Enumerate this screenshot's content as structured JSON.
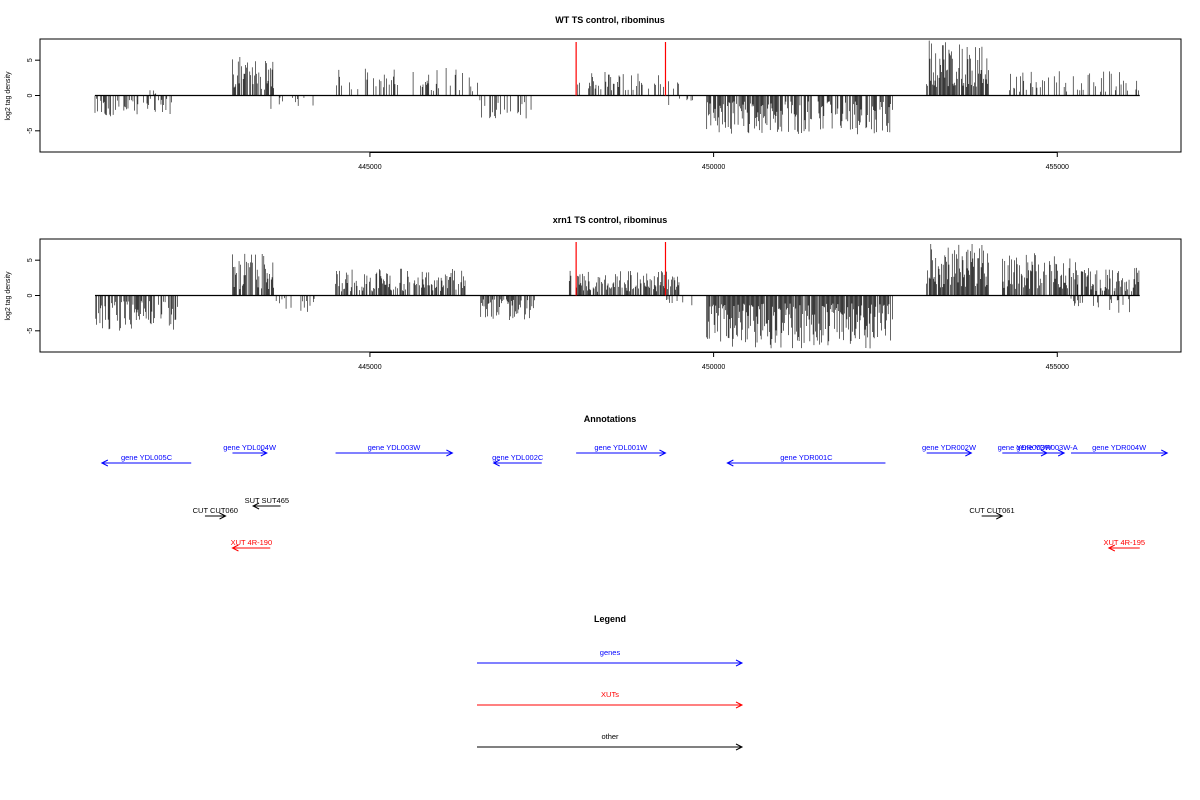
{
  "chart_data": [
    {
      "type": "bar",
      "title": "WT TS control, ribominus",
      "xlabel": "",
      "ylabel": "log2 tag density",
      "xlim": [
        440200,
        456800
      ],
      "ylim": [
        -8,
        8
      ],
      "xticks": [
        445000,
        450000,
        455000
      ],
      "yticks": [
        -5,
        0,
        5
      ],
      "grid": false,
      "marker_lines": {
        "color": "#ff0000",
        "x": [
          448000,
          449300
        ],
        "height": 8
      },
      "segments": [
        {
          "start": 441000,
          "end": 442200,
          "sign": -1,
          "max": 3,
          "density": 0.35
        },
        {
          "start": 441800,
          "end": 441900,
          "sign": 1,
          "max": 1,
          "density": 0.5
        },
        {
          "start": 443000,
          "end": 443600,
          "sign": 1,
          "max": 5.5,
          "density": 0.7
        },
        {
          "start": 443500,
          "end": 444200,
          "sign": -1,
          "max": 2,
          "density": 0.15
        },
        {
          "start": 444500,
          "end": 446600,
          "sign": 1,
          "max": 4,
          "density": 0.25
        },
        {
          "start": 446600,
          "end": 447400,
          "sign": -1,
          "max": 3.5,
          "density": 0.35
        },
        {
          "start": 448000,
          "end": 449500,
          "sign": 1,
          "max": 3.5,
          "density": 0.3
        },
        {
          "start": 449300,
          "end": 449700,
          "sign": -1,
          "max": 1.5,
          "density": 0.15
        },
        {
          "start": 449900,
          "end": 452600,
          "sign": -1,
          "max": 5.5,
          "density": 0.75
        },
        {
          "start": 453100,
          "end": 454000,
          "sign": 1,
          "max": 8,
          "density": 0.9
        },
        {
          "start": 454200,
          "end": 456200,
          "sign": 1,
          "max": 3.5,
          "density": 0.3
        }
      ]
    },
    {
      "type": "bar",
      "title": "xrn1 TS control, ribominus",
      "xlabel": "",
      "ylabel": "log2 tag density",
      "xlim": [
        440200,
        456800
      ],
      "ylim": [
        -8,
        8
      ],
      "xticks": [
        445000,
        450000,
        455000
      ],
      "yticks": [
        -5,
        0,
        5
      ],
      "grid": false,
      "marker_lines": {
        "color": "#ff0000",
        "x": [
          448000,
          449300
        ],
        "height": 8
      },
      "segments": [
        {
          "start": 441000,
          "end": 442200,
          "sign": -1,
          "max": 5,
          "density": 0.6
        },
        {
          "start": 443000,
          "end": 443600,
          "sign": 1,
          "max": 6,
          "density": 0.75
        },
        {
          "start": 443600,
          "end": 444200,
          "sign": -1,
          "max": 2.5,
          "density": 0.25
        },
        {
          "start": 444500,
          "end": 446400,
          "sign": 1,
          "max": 3.8,
          "density": 0.7
        },
        {
          "start": 446600,
          "end": 447400,
          "sign": -1,
          "max": 3.5,
          "density": 0.7
        },
        {
          "start": 447900,
          "end": 449500,
          "sign": 1,
          "max": 3.5,
          "density": 0.75
        },
        {
          "start": 449300,
          "end": 449700,
          "sign": -1,
          "max": 1.5,
          "density": 0.3
        },
        {
          "start": 449900,
          "end": 452600,
          "sign": -1,
          "max": 7.5,
          "density": 0.95
        },
        {
          "start": 453100,
          "end": 454000,
          "sign": 1,
          "max": 7.5,
          "density": 0.95
        },
        {
          "start": 454200,
          "end": 455300,
          "sign": 1,
          "max": 6,
          "density": 0.8
        },
        {
          "start": 455300,
          "end": 456200,
          "sign": 1,
          "max": 4,
          "density": 0.7
        },
        {
          "start": 455200,
          "end": 456200,
          "sign": -1,
          "max": 2.5,
          "density": 0.3
        }
      ]
    }
  ],
  "annotations": {
    "title": "Annotations",
    "features": [
      {
        "label": "gene YDL005C",
        "type": "gene",
        "strand": "-",
        "start": 441100,
        "end": 442400,
        "row": 1
      },
      {
        "label": "gene YDL004W",
        "type": "gene",
        "strand": "+",
        "start": 443000,
        "end": 443500,
        "row": 0
      },
      {
        "label": "gene YDL003W",
        "type": "gene",
        "strand": "+",
        "start": 444500,
        "end": 446200,
        "row": 0
      },
      {
        "label": "gene YDL002C",
        "type": "gene",
        "strand": "-",
        "start": 446800,
        "end": 447500,
        "row": 1
      },
      {
        "label": "gene YDL001W",
        "type": "gene",
        "strand": "+",
        "start": 448000,
        "end": 449300,
        "row": 0
      },
      {
        "label": "gene YDR001C",
        "type": "gene",
        "strand": "-",
        "start": 450200,
        "end": 452500,
        "row": 1
      },
      {
        "label": "gene YDR002W",
        "type": "gene",
        "strand": "+",
        "start": 453100,
        "end": 453750,
        "row": 0
      },
      {
        "label": "gene YDR003W",
        "type": "gene",
        "strand": "+",
        "start": 454200,
        "end": 454850,
        "row": 0
      },
      {
        "label": "gene YDR003W-A",
        "type": "gene",
        "strand": "+",
        "start": 454600,
        "end": 455100,
        "row": 0
      },
      {
        "label": "gene YDR004W",
        "type": "gene",
        "strand": "+",
        "start": 455200,
        "end": 456600,
        "row": 0
      },
      {
        "label": "SUT SUT465",
        "type": "other",
        "strand": "-",
        "start": 443300,
        "end": 443700,
        "row": 2
      },
      {
        "label": "CUT CUT060",
        "type": "other",
        "strand": "+",
        "start": 442600,
        "end": 442900,
        "row": 3
      },
      {
        "label": "CUT CUT061",
        "type": "other",
        "strand": "+",
        "start": 453900,
        "end": 454200,
        "row": 3
      },
      {
        "label": "XUT 4R-190",
        "type": "xut",
        "strand": "-",
        "start": 443000,
        "end": 443550,
        "row": 4
      },
      {
        "label": "XUT 4R-195",
        "type": "xut",
        "strand": "-",
        "start": 455750,
        "end": 456200,
        "row": 4
      }
    ]
  },
  "legend": {
    "title": "Legend",
    "items": [
      {
        "label": "genes",
        "color": "#0000ff"
      },
      {
        "label": "XUTs",
        "color": "#ff0000"
      },
      {
        "label": "other",
        "color": "#000000"
      }
    ]
  },
  "colors": {
    "gene": "#0000ff",
    "xut": "#ff0000",
    "other": "#000000"
  }
}
